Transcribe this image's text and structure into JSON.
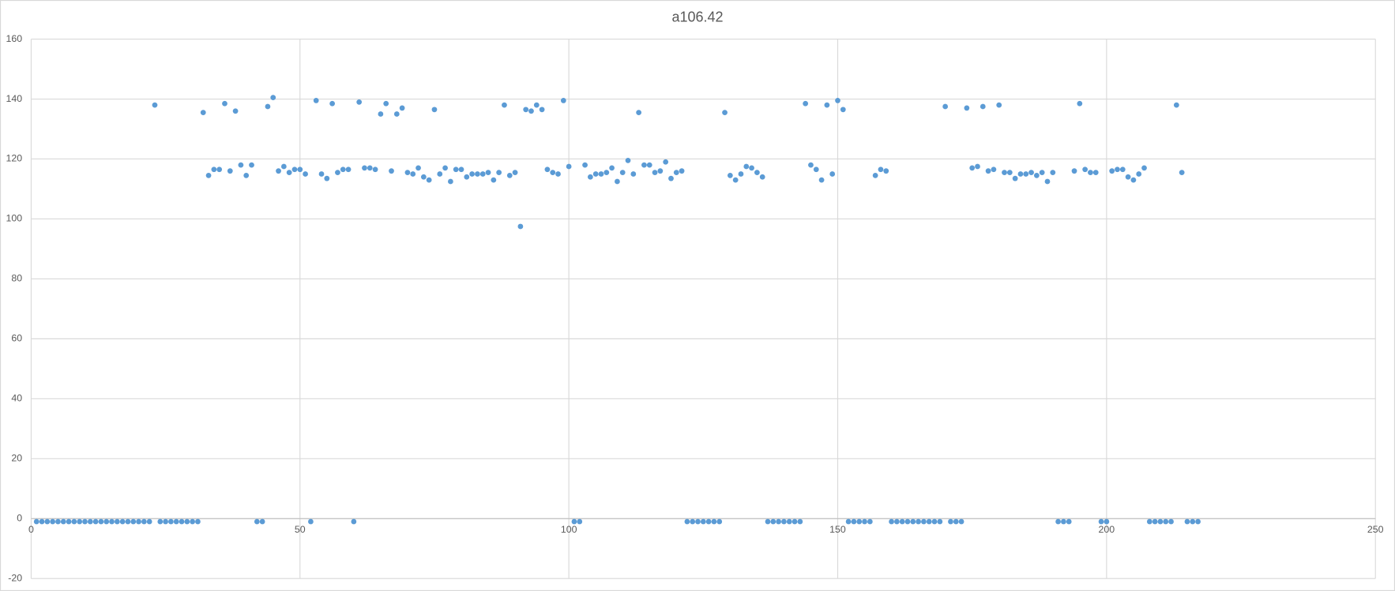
{
  "chart_data": {
    "type": "scatter",
    "title": "a106.42",
    "color": "#5b9bd5",
    "grid": true,
    "xlim": [
      0,
      250
    ],
    "xticks": [
      0,
      50,
      100,
      150,
      200,
      250
    ],
    "ylim": [
      -20,
      160
    ],
    "yticks": [
      -20,
      0,
      20,
      40,
      60,
      80,
      100,
      120,
      140,
      160
    ],
    "x": [
      1,
      2,
      3,
      4,
      5,
      6,
      7,
      8,
      9,
      10,
      11,
      12,
      13,
      14,
      15,
      16,
      17,
      18,
      19,
      20,
      21,
      22,
      23,
      24,
      25,
      26,
      27,
      28,
      29,
      30,
      31,
      32,
      33,
      34,
      35,
      36,
      37,
      38,
      39,
      40,
      41,
      42,
      43,
      44,
      45,
      46,
      47,
      48,
      49,
      50,
      51,
      52,
      53,
      54,
      55,
      56,
      57,
      58,
      59,
      60,
      61,
      62,
      63,
      64,
      65,
      66,
      67,
      68,
      69,
      70,
      71,
      72,
      73,
      74,
      75,
      76,
      77,
      78,
      79,
      80,
      81,
      82,
      83,
      84,
      85,
      86,
      87,
      88,
      89,
      90,
      91,
      92,
      93,
      94,
      95,
      96,
      97,
      98,
      99,
      100,
      101,
      102,
      103,
      104,
      105,
      106,
      107,
      108,
      109,
      110,
      111,
      112,
      113,
      114,
      115,
      116,
      117,
      118,
      119,
      120,
      121,
      122,
      123,
      124,
      125,
      126,
      127,
      128,
      129,
      130,
      131,
      132,
      133,
      134,
      135,
      136,
      137,
      138,
      139,
      140,
      141,
      142,
      143,
      144,
      145,
      146,
      147,
      148,
      149,
      150,
      151,
      152,
      153,
      154,
      155,
      156,
      157,
      158,
      159,
      160,
      161,
      162,
      163,
      164,
      165,
      166,
      167,
      168,
      169,
      170,
      171,
      172,
      173,
      174,
      175,
      176,
      177,
      178,
      179,
      180,
      181,
      182,
      183,
      184,
      185,
      186,
      187,
      188,
      189,
      190,
      191,
      192,
      193,
      194,
      195,
      196,
      197,
      198,
      199,
      200,
      201,
      202,
      203,
      204,
      205,
      206,
      207,
      208,
      209,
      210,
      211,
      212,
      213,
      214,
      215,
      216,
      217
    ],
    "values": [
      -1,
      -1,
      -1,
      -1,
      -1,
      -1,
      -1,
      -1,
      -1,
      -1,
      -1,
      -1,
      -1,
      -1,
      -1,
      -1,
      -1,
      -1,
      -1,
      -1,
      -1,
      -1,
      138,
      -1,
      -1,
      -1,
      -1,
      -1,
      -1,
      -1,
      -1,
      135.5,
      114.5,
      116.5,
      116.5,
      138.5,
      116,
      136,
      118,
      114.5,
      118,
      -1,
      -1,
      137.5,
      140.5,
      116,
      117.5,
      115.5,
      116.5,
      116.5,
      115,
      -1,
      139.5,
      115,
      113.5,
      138.5,
      115.5,
      116.5,
      116.5,
      -1,
      139,
      117,
      117,
      116.5,
      135,
      138.5,
      116,
      135,
      137,
      115.5,
      115,
      117,
      114,
      113,
      136.5,
      115,
      117,
      112.5,
      116.5,
      116.5,
      114,
      115,
      115,
      115,
      115.5,
      113,
      115.5,
      138,
      114.5,
      115.5,
      97.5,
      136.5,
      136,
      138,
      136.5,
      116.5,
      115.5,
      115,
      139.5,
      117.5,
      -1,
      -1,
      118,
      114,
      115,
      115,
      115.5,
      117,
      112.5,
      115.5,
      119.5,
      115,
      135.5,
      118,
      118,
      115.5,
      116,
      119,
      113.5,
      115.5,
      116,
      -1,
      -1,
      -1,
      -1,
      -1,
      -1,
      -1,
      135.5,
      114.5,
      113,
      115,
      117.5,
      117,
      115.5,
      114,
      -1,
      -1,
      -1,
      -1,
      -1,
      -1,
      -1,
      138.5,
      118,
      116.5,
      113,
      138,
      115,
      139.5,
      136.5,
      -1,
      -1,
      -1,
      -1,
      -1,
      114.5,
      116.5,
      116,
      -1,
      -1,
      -1,
      -1,
      -1,
      -1,
      -1,
      -1,
      -1,
      -1,
      137.5,
      -1,
      -1,
      -1,
      137,
      117,
      117.5,
      137.5,
      116,
      116.5,
      138,
      115.5,
      115.5,
      113.5,
      115,
      115,
      115.5,
      114.5,
      115.5,
      112.5,
      115.5,
      -1,
      -1,
      -1,
      116,
      138.5,
      116.5,
      115.5,
      115.5,
      -1,
      -1,
      116,
      116.5,
      116.5,
      114,
      113,
      115,
      117,
      -1,
      -1,
      -1,
      -1,
      -1,
      138,
      115.5,
      -1,
      -1,
      -1
    ]
  }
}
